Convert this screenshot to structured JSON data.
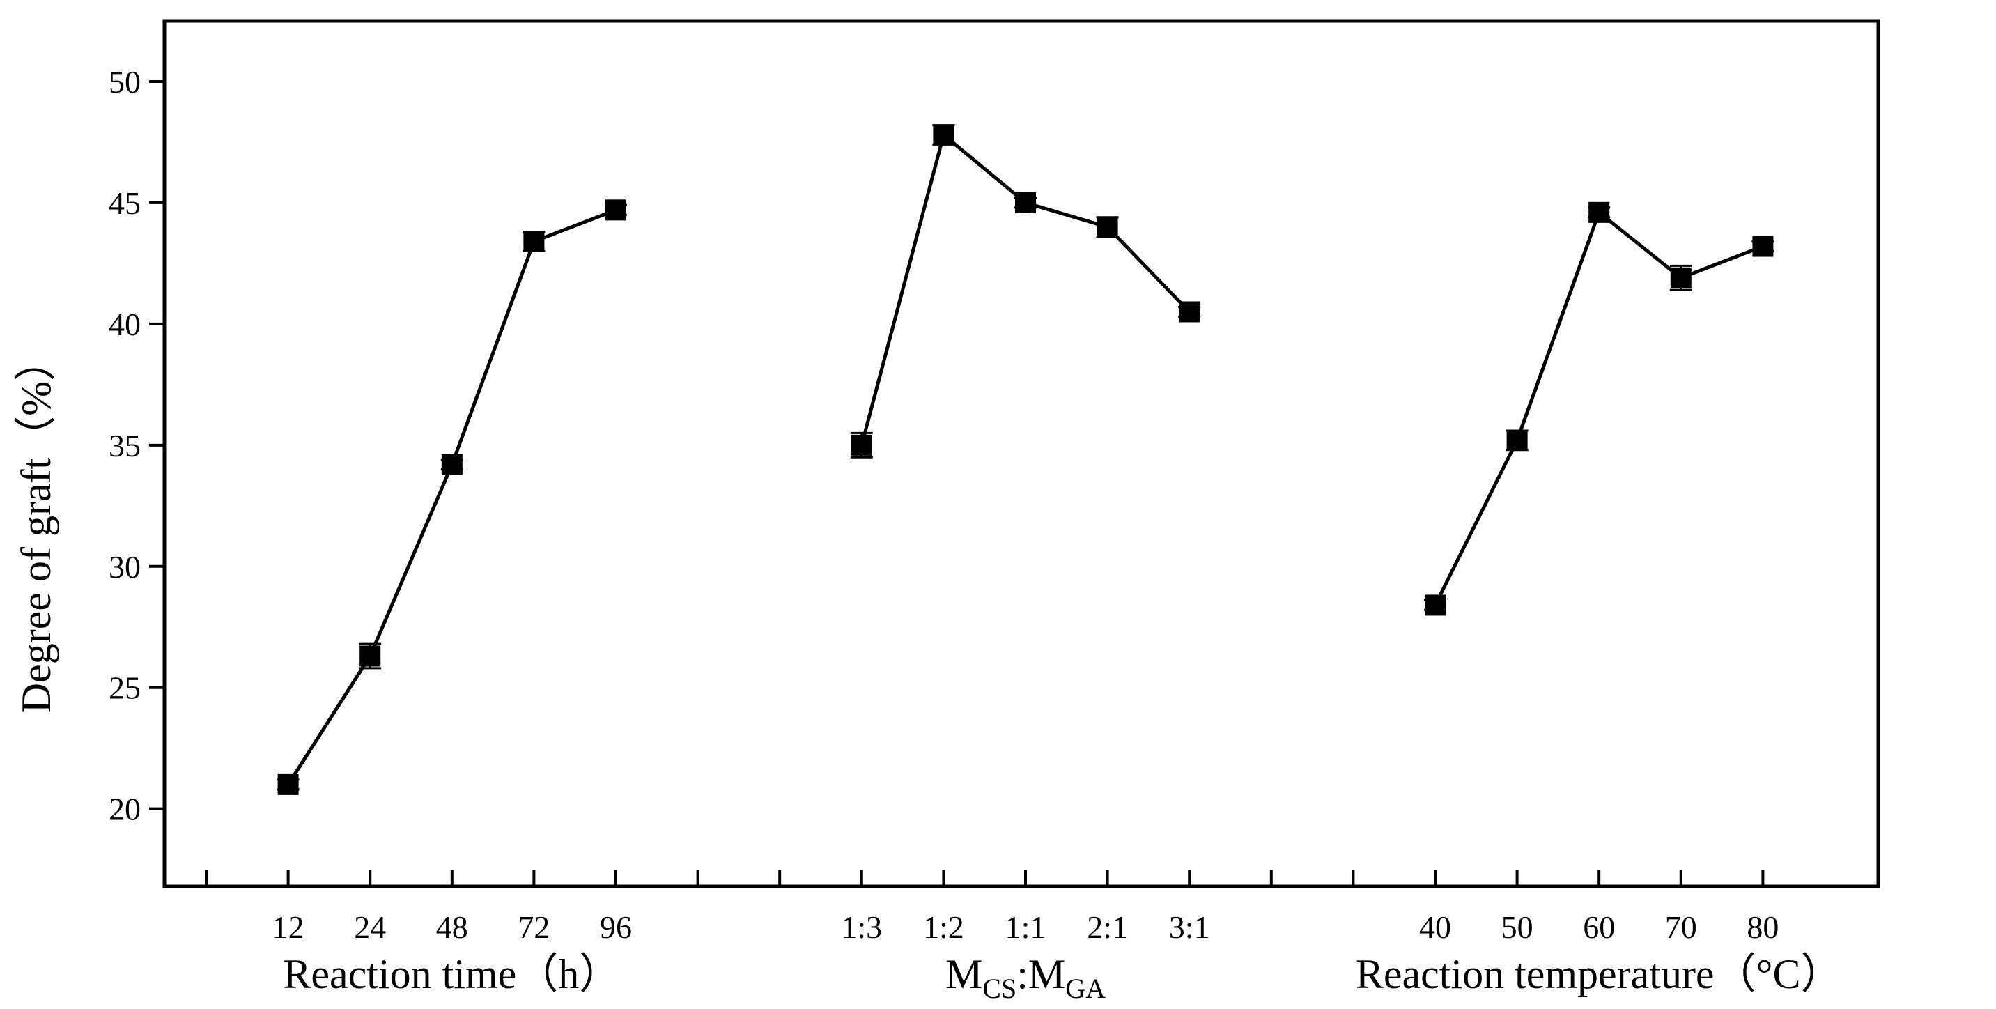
{
  "chart_data": {
    "type": "line",
    "ylabel": "Degree of graft（%）",
    "ylim": [
      16.8,
      52.5
    ],
    "yticks": [
      20,
      25,
      30,
      35,
      40,
      45,
      50
    ],
    "ytick_labels": [
      "20",
      "25",
      "30",
      "35",
      "40",
      "45",
      "50"
    ],
    "grid": false,
    "legend": "none",
    "marker": "square",
    "line_color": "#000000",
    "groups": [
      {
        "xlabel_parts": [
          "Reaction time（h）"
        ],
        "categories": [
          "12",
          "24",
          "48",
          "72",
          "96"
        ],
        "values": [
          21.0,
          26.3,
          34.2,
          43.4,
          44.7
        ],
        "errors": [
          0.2,
          0.5,
          0.2,
          0.4,
          0.2
        ]
      },
      {
        "xlabel_parts": [
          "M",
          "CS",
          ":M",
          "GA"
        ],
        "categories": [
          "1:3",
          "1:2",
          "1:1",
          "2:1",
          "3:1"
        ],
        "values": [
          35.0,
          47.8,
          45.0,
          44.0,
          40.5
        ],
        "errors": [
          0.5,
          0.4,
          0.2,
          0.4,
          0.2
        ]
      },
      {
        "xlabel_parts": [
          "Reaction temperature（°C）"
        ],
        "categories": [
          "40",
          "50",
          "60",
          "70",
          "80"
        ],
        "values": [
          28.4,
          35.2,
          44.6,
          41.9,
          43.2
        ],
        "errors": [
          0.2,
          0.4,
          0.2,
          0.5,
          0.2
        ]
      }
    ]
  }
}
